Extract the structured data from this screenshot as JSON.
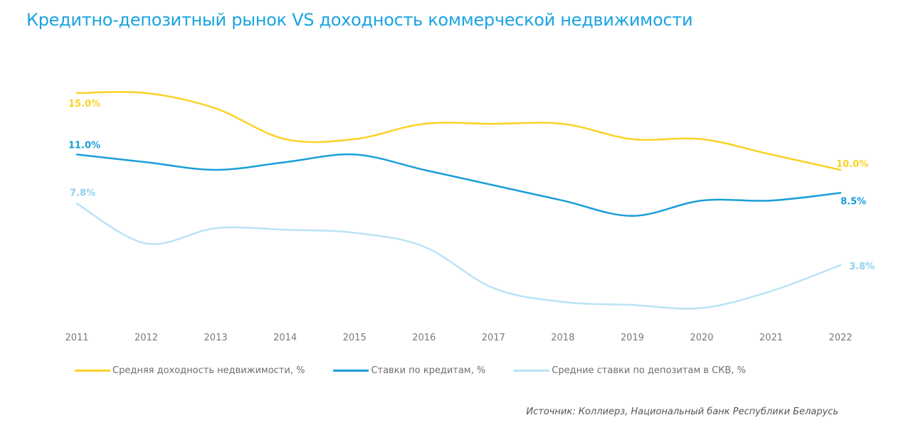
{
  "chart_data": {
    "type": "line",
    "title": "Кредитно-депозитный рынок VS доходность коммерческой недвижимости",
    "xlabel": "",
    "ylabel": "",
    "x": [
      "2011",
      "2012",
      "2013",
      "2014",
      "2015",
      "2016",
      "2017",
      "2018",
      "2019",
      "2020",
      "2021",
      "2022"
    ],
    "ylim": [
      0,
      16
    ],
    "grid": false,
    "legend_position": "bottom",
    "series": [
      {
        "name": "Средняя доходность недвижимости, %",
        "color": "#fbd225",
        "values": [
          15.0,
          15.0,
          14.0,
          12.0,
          12.0,
          13.0,
          13.0,
          13.0,
          12.0,
          12.0,
          11.0,
          10.0
        ],
        "data_labels": {
          "start": "15.0%",
          "end": "10.0%"
        }
      },
      {
        "name": "Ставки по кредитам, %",
        "color": "#1a9ed9",
        "values": [
          11.0,
          10.5,
          10.0,
          10.5,
          11.0,
          10.0,
          9.0,
          8.0,
          7.0,
          8.0,
          8.0,
          8.5
        ],
        "data_labels": {
          "start": "11.0%",
          "end": "8.5%"
        }
      },
      {
        "name": "Средние ставки по депозитам в СКВ, %",
        "color": "#b9e3f6",
        "label_color": "#8fd0ef",
        "values": [
          7.8,
          5.2,
          6.2,
          6.1,
          5.9,
          5.0,
          2.3,
          1.4,
          1.2,
          1.0,
          2.1,
          3.8
        ],
        "data_labels": {
          "start": "7.8%",
          "end": "3.8%"
        }
      }
    ],
    "source": "Источник: Коллиерз, Национальный банк Республики Беларусь"
  }
}
